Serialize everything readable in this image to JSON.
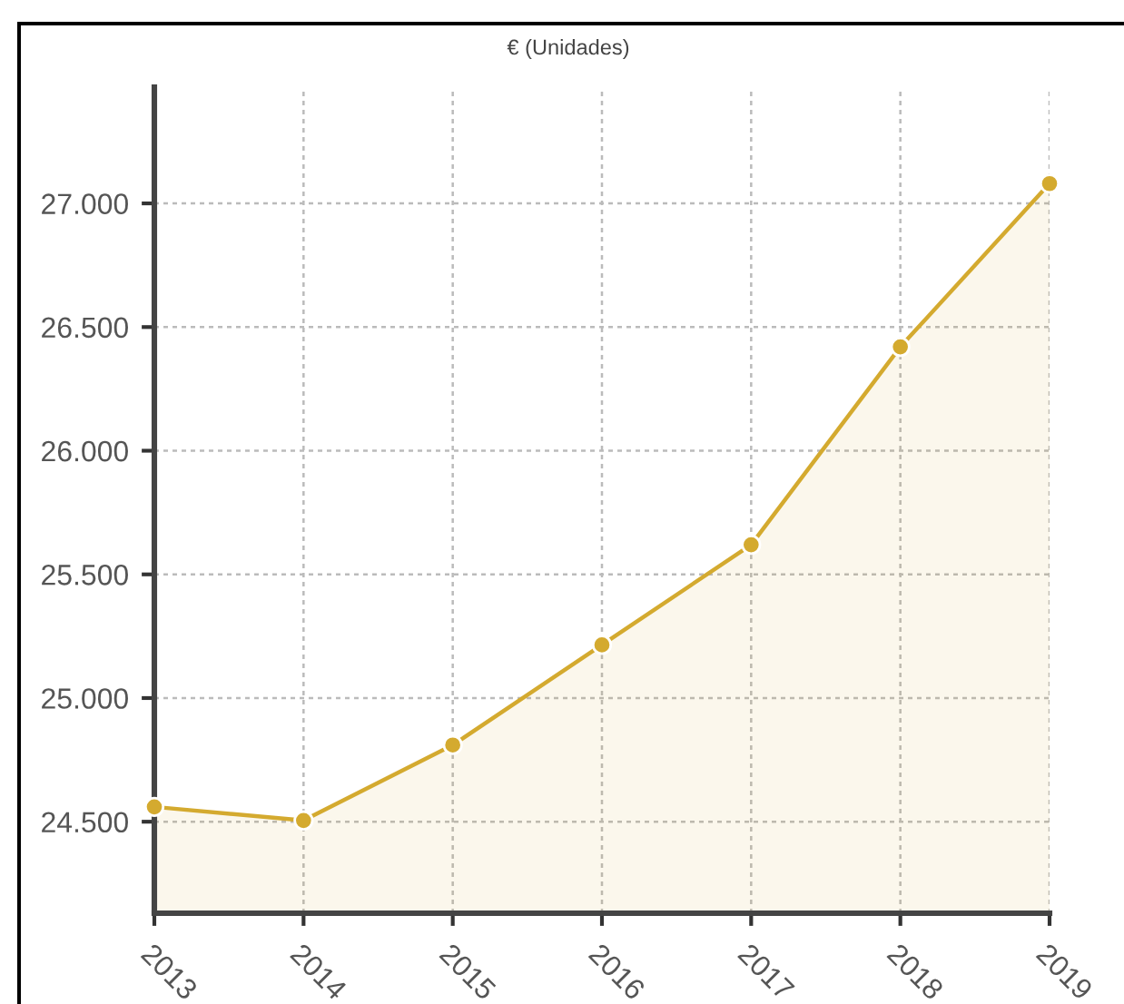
{
  "chart_data": {
    "type": "area",
    "title": "€ (Unidades)",
    "x": [
      2013,
      2014,
      2015,
      2016,
      2017,
      2018,
      2019
    ],
    "xlim": [
      2013,
      2019
    ],
    "xticks": [
      2013,
      2014,
      2015,
      2016,
      2017,
      2018,
      2019
    ],
    "ylim": [
      24130,
      27470
    ],
    "yticks": [
      {
        "value": 24500,
        "label": "24.500"
      },
      {
        "value": 25000,
        "label": "25.000"
      },
      {
        "value": 25500,
        "label": "25.500"
      },
      {
        "value": 26000,
        "label": "26.000"
      },
      {
        "value": 26500,
        "label": "26.500"
      },
      {
        "value": 27000,
        "label": "27.000"
      }
    ],
    "series": [
      {
        "color": "#d4aa2f",
        "values": [
          24560,
          24505,
          24810,
          25215,
          25620,
          26420,
          27080
        ]
      }
    ],
    "grid": true,
    "marker": "circle",
    "line_style": "solid"
  }
}
